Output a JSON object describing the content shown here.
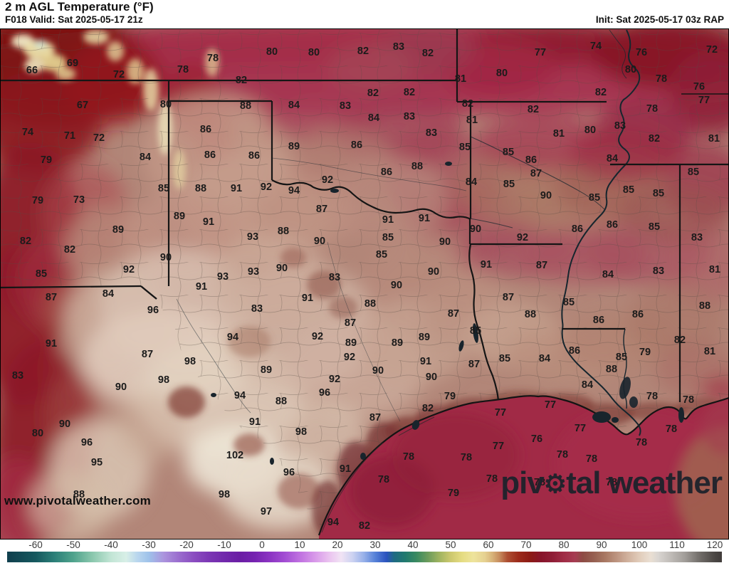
{
  "header": {
    "title": "2 m AGL Temperature (°F)",
    "subtitle": "F018 Valid: Sat 2025-05-17 21z",
    "init": "Init: Sat 2025-05-17 03z RAP"
  },
  "watermark": "www.pivotalweather.com",
  "logo": {
    "pre": "piv",
    "gear": "⚙",
    "post": "tal weather"
  },
  "colorbar": {
    "units": "°F",
    "ticks": [
      -60,
      -50,
      -40,
      -30,
      -20,
      -10,
      0,
      10,
      20,
      30,
      40,
      50,
      60,
      70,
      80,
      90,
      100,
      110,
      120
    ],
    "stops": [
      [
        -67,
        "#10404e"
      ],
      [
        -60,
        "#15585e"
      ],
      [
        -55,
        "#2b7f78"
      ],
      [
        -50,
        "#4fa38c"
      ],
      [
        -45,
        "#8ac7ad"
      ],
      [
        -40,
        "#c2e5d5"
      ],
      [
        -36,
        "#d8efe7"
      ],
      [
        -33,
        "#b9d6ee"
      ],
      [
        -30,
        "#9fc2ea"
      ],
      [
        -26,
        "#ab93dd"
      ],
      [
        -22,
        "#9a6cce"
      ],
      [
        -18,
        "#8a4cc0"
      ],
      [
        -14,
        "#7b36b4"
      ],
      [
        -10,
        "#7128ac"
      ],
      [
        -6,
        "#6a1da4"
      ],
      [
        -2,
        "#7522b0"
      ],
      [
        2,
        "#8b33c2"
      ],
      [
        6,
        "#a24cd3"
      ],
      [
        10,
        "#bf70e0"
      ],
      [
        14,
        "#d898e9"
      ],
      [
        18,
        "#ebc5f0"
      ],
      [
        21,
        "#f1e3f4"
      ],
      [
        24,
        "#ccd2f1"
      ],
      [
        27,
        "#97b0e9"
      ],
      [
        30,
        "#5681d8"
      ],
      [
        33,
        "#2b53bf"
      ],
      [
        35,
        "#1e6a82"
      ],
      [
        38,
        "#207a6e"
      ],
      [
        41,
        "#3a8a60"
      ],
      [
        44,
        "#6c9c5c"
      ],
      [
        47,
        "#a0b460"
      ],
      [
        50,
        "#ccc86e"
      ],
      [
        53,
        "#e5dc82"
      ],
      [
        56,
        "#eee49c"
      ],
      [
        59,
        "#e6d292"
      ],
      [
        61,
        "#d8b47a"
      ],
      [
        63,
        "#c68a5c"
      ],
      [
        65,
        "#ad4f32"
      ],
      [
        68,
        "#9c2a1a"
      ],
      [
        71,
        "#8c1a14"
      ],
      [
        74,
        "#87142a"
      ],
      [
        77,
        "#8f1d36"
      ],
      [
        80,
        "#a02c46"
      ],
      [
        83,
        "#a63c52"
      ],
      [
        85,
        "#8d4b44"
      ],
      [
        88,
        "#966051"
      ],
      [
        91,
        "#a97963"
      ],
      [
        94,
        "#bd9480"
      ],
      [
        97,
        "#d1b29e"
      ],
      [
        100,
        "#e1ccba"
      ],
      [
        103,
        "#eadfd3"
      ],
      [
        105,
        "#d9d5d1"
      ],
      [
        108,
        "#c2beba"
      ],
      [
        112,
        "#a29e9a"
      ],
      [
        116,
        "#716d69"
      ],
      [
        120,
        "#4b4744"
      ],
      [
        122,
        "#403c3a"
      ]
    ]
  },
  "chart_data": {
    "type": "heatmap",
    "title": "2 m AGL Temperature (°F)",
    "units": "°F",
    "legend_range": [
      -60,
      120
    ],
    "station_values": [
      [
        45,
        98,
        66
      ],
      [
        102,
        88,
        69
      ],
      [
        167,
        104,
        72
      ],
      [
        257,
        97,
        78
      ],
      [
        299,
        81,
        78
      ],
      [
        382,
        72,
        80
      ],
      [
        441,
        73,
        80
      ],
      [
        510,
        71,
        82
      ],
      [
        560,
        65,
        83
      ],
      [
        601,
        74,
        82
      ],
      [
        759,
        73,
        77
      ],
      [
        837,
        64,
        74
      ],
      [
        901,
        73,
        76
      ],
      [
        1000,
        69,
        72
      ],
      [
        339,
        112,
        82
      ],
      [
        647,
        110,
        81
      ],
      [
        705,
        102,
        80
      ],
      [
        886,
        97,
        80
      ],
      [
        929,
        110,
        78
      ],
      [
        982,
        121,
        76
      ],
      [
        116,
        147,
        67
      ],
      [
        233,
        146,
        80
      ],
      [
        345,
        148,
        88
      ],
      [
        413,
        147,
        84
      ],
      [
        485,
        148,
        83
      ],
      [
        524,
        130,
        82
      ],
      [
        575,
        129,
        82
      ],
      [
        844,
        129,
        82
      ],
      [
        989,
        140,
        77
      ],
      [
        657,
        145,
        82
      ],
      [
        749,
        153,
        82
      ],
      [
        916,
        152,
        78
      ],
      [
        525,
        165,
        84
      ],
      [
        575,
        163,
        83
      ],
      [
        663,
        168,
        81
      ],
      [
        871,
        176,
        83
      ],
      [
        39,
        185,
        74
      ],
      [
        98,
        190,
        71
      ],
      [
        139,
        193,
        72
      ],
      [
        289,
        181,
        86
      ],
      [
        606,
        186,
        83
      ],
      [
        785,
        187,
        81
      ],
      [
        829,
        182,
        80
      ],
      [
        919,
        194,
        82
      ],
      [
        1003,
        194,
        81
      ],
      [
        413,
        205,
        89
      ],
      [
        501,
        203,
        86
      ],
      [
        653,
        206,
        85
      ],
      [
        65,
        224,
        79
      ],
      [
        204,
        220,
        84
      ],
      [
        295,
        217,
        86
      ],
      [
        357,
        218,
        86
      ],
      [
        714,
        213,
        85
      ],
      [
        746,
        224,
        86
      ],
      [
        860,
        222,
        84
      ],
      [
        586,
        233,
        88
      ],
      [
        543,
        241,
        86
      ],
      [
        753,
        243,
        87
      ],
      [
        974,
        241,
        85
      ],
      [
        460,
        252,
        92
      ],
      [
        230,
        264,
        85
      ],
      [
        282,
        264,
        88
      ],
      [
        332,
        264,
        91
      ],
      [
        374,
        262,
        92
      ],
      [
        413,
        267,
        94
      ],
      [
        662,
        255,
        84
      ],
      [
        715,
        258,
        85
      ],
      [
        883,
        266,
        85
      ],
      [
        925,
        271,
        85
      ],
      [
        767,
        274,
        90
      ],
      [
        835,
        277,
        85
      ],
      [
        53,
        281,
        79
      ],
      [
        111,
        280,
        73
      ],
      [
        452,
        293,
        87
      ],
      [
        252,
        303,
        89
      ],
      [
        293,
        311,
        91
      ],
      [
        545,
        308,
        91
      ],
      [
        596,
        306,
        91
      ],
      [
        166,
        322,
        89
      ],
      [
        355,
        332,
        93
      ],
      [
        398,
        324,
        88
      ],
      [
        449,
        338,
        90
      ],
      [
        668,
        321,
        90
      ],
      [
        734,
        333,
        92
      ],
      [
        811,
        321,
        86
      ],
      [
        860,
        315,
        86
      ],
      [
        919,
        318,
        85
      ],
      [
        979,
        333,
        83
      ],
      [
        36,
        338,
        82
      ],
      [
        98,
        350,
        82
      ],
      [
        233,
        361,
        90
      ],
      [
        545,
        333,
        85
      ],
      [
        625,
        339,
        90
      ],
      [
        536,
        357,
        85
      ],
      [
        181,
        378,
        92
      ],
      [
        58,
        384,
        85
      ],
      [
        313,
        388,
        93
      ],
      [
        356,
        381,
        93
      ],
      [
        396,
        376,
        90
      ],
      [
        470,
        389,
        83
      ],
      [
        683,
        371,
        91
      ],
      [
        761,
        372,
        87
      ],
      [
        609,
        381,
        90
      ],
      [
        854,
        385,
        84
      ],
      [
        925,
        380,
        83
      ],
      [
        1004,
        378,
        81
      ],
      [
        283,
        402,
        91
      ],
      [
        152,
        412,
        84
      ],
      [
        72,
        417,
        87
      ],
      [
        432,
        418,
        91
      ],
      [
        557,
        400,
        90
      ],
      [
        215,
        435,
        96
      ],
      [
        361,
        433,
        83
      ],
      [
        520,
        426,
        88
      ],
      [
        714,
        417,
        87
      ],
      [
        799,
        424,
        85
      ],
      [
        990,
        429,
        88
      ],
      [
        637,
        440,
        87
      ],
      [
        745,
        441,
        88
      ],
      [
        896,
        441,
        86
      ],
      [
        841,
        449,
        86
      ],
      [
        492,
        453,
        87
      ],
      [
        327,
        473,
        94
      ],
      [
        446,
        472,
        92
      ],
      [
        72,
        482,
        91
      ],
      [
        493,
        481,
        89
      ],
      [
        668,
        464,
        85
      ],
      [
        596,
        473,
        89
      ],
      [
        558,
        481,
        89
      ],
      [
        955,
        477,
        82
      ],
      [
        906,
        494,
        79
      ],
      [
        807,
        492,
        86
      ],
      [
        997,
        493,
        81
      ],
      [
        207,
        497,
        87
      ],
      [
        491,
        501,
        92
      ],
      [
        267,
        507,
        98
      ],
      [
        598,
        507,
        91
      ],
      [
        709,
        503,
        85
      ],
      [
        765,
        503,
        84
      ],
      [
        873,
        501,
        85
      ],
      [
        666,
        511,
        87
      ],
      [
        374,
        519,
        89
      ],
      [
        859,
        518,
        88
      ],
      [
        531,
        520,
        90
      ],
      [
        606,
        529,
        90
      ],
      [
        25,
        527,
        83
      ],
      [
        230,
        533,
        98
      ],
      [
        470,
        532,
        92
      ],
      [
        170,
        543,
        90
      ],
      [
        337,
        555,
        94
      ],
      [
        395,
        563,
        88
      ],
      [
        456,
        551,
        96
      ],
      [
        825,
        540,
        84
      ],
      [
        632,
        556,
        79
      ],
      [
        916,
        556,
        78
      ],
      [
        967,
        561,
        78
      ],
      [
        91,
        595,
        90
      ],
      [
        53,
        608,
        80
      ],
      [
        358,
        592,
        91
      ],
      [
        423,
        606,
        98
      ],
      [
        601,
        573,
        82
      ],
      [
        773,
        568,
        77
      ],
      [
        527,
        586,
        87
      ],
      [
        703,
        579,
        77
      ],
      [
        122,
        621,
        96
      ],
      [
        136,
        649,
        95
      ],
      [
        330,
        639,
        102
      ],
      [
        406,
        663,
        96
      ],
      [
        485,
        658,
        91
      ],
      [
        815,
        601,
        77
      ],
      [
        943,
        602,
        78
      ],
      [
        754,
        616,
        76
      ],
      [
        901,
        621,
        78
      ],
      [
        700,
        626,
        77
      ],
      [
        574,
        641,
        78
      ],
      [
        655,
        642,
        78
      ],
      [
        790,
        638,
        78
      ],
      [
        831,
        644,
        78
      ],
      [
        111,
        694,
        88
      ],
      [
        315,
        694,
        98
      ],
      [
        539,
        673,
        78
      ],
      [
        691,
        672,
        78
      ],
      [
        758,
        677,
        78
      ],
      [
        859,
        677,
        78
      ],
      [
        374,
        718,
        97
      ],
      [
        468,
        733,
        94
      ],
      [
        637,
        692,
        79
      ],
      [
        512,
        738,
        82
      ]
    ]
  }
}
